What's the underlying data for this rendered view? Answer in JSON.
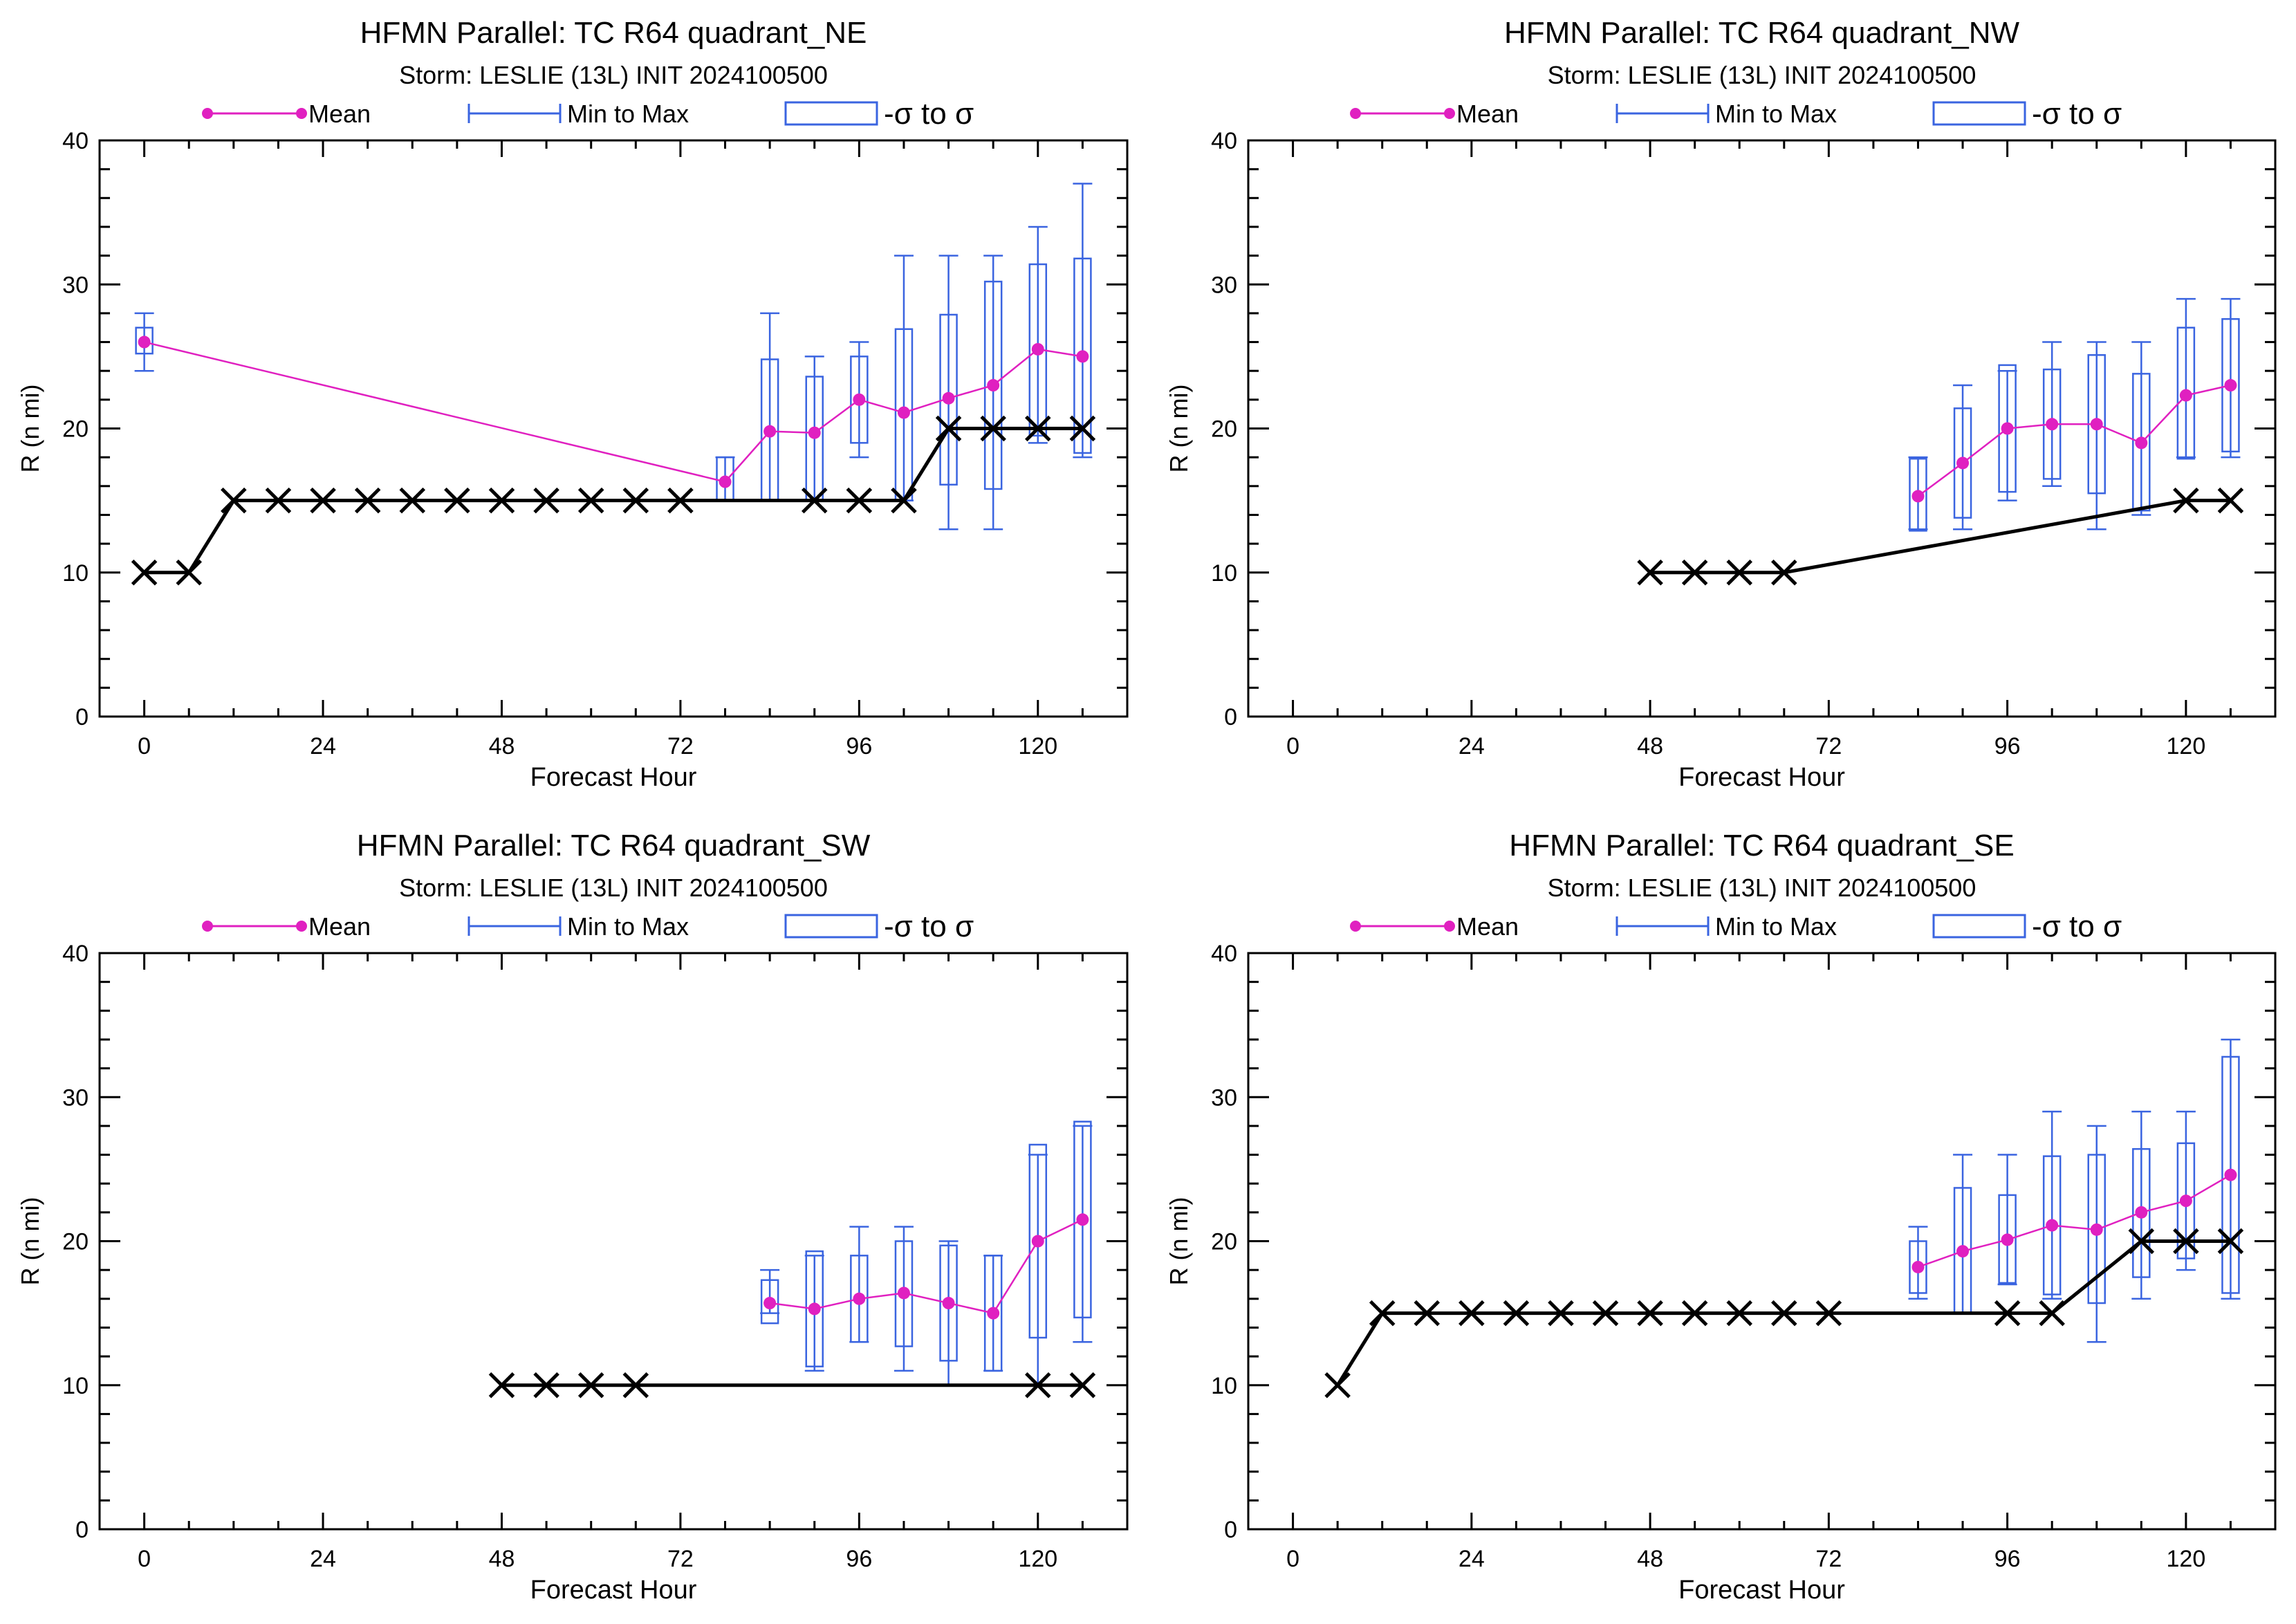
{
  "legend": {
    "mean": "Mean",
    "minmax": "Min to Max",
    "sigma": "-σ to σ"
  },
  "colors": {
    "mean": "#e020c0",
    "range": "#3a64e0",
    "best_track": "#000000"
  },
  "chart_data": [
    {
      "type": "line",
      "title": "HFMN Parallel: TC  R64 quadrant_NE",
      "subtitle": "Storm: LESLIE (13L) INIT 2024100500",
      "xlabel": "Forecast Hour",
      "ylabel": "R (n mi)",
      "xlim": [
        -6,
        132
      ],
      "ylim": [
        0,
        40
      ],
      "xticks": [
        0,
        24,
        48,
        72,
        96,
        120
      ],
      "yticks": [
        0,
        10,
        20,
        30,
        40
      ],
      "grid": false,
      "legend_position": "top",
      "best_track": {
        "x": [
          0,
          6,
          12,
          18,
          24,
          30,
          36,
          42,
          48,
          54,
          60,
          66,
          72,
          90,
          96,
          102,
          108,
          114,
          120,
          126
        ],
        "y": [
          10,
          10,
          15,
          15,
          15,
          15,
          15,
          15,
          15,
          15,
          15,
          15,
          15,
          15,
          15,
          15,
          20,
          20,
          20,
          20
        ]
      },
      "ensemble": {
        "x": [
          0,
          78,
          84,
          90,
          96,
          102,
          108,
          114,
          120,
          126
        ],
        "mean": [
          26,
          16.3,
          19.8,
          19.7,
          22,
          21.1,
          22.1,
          23,
          25.5,
          25
        ],
        "min": [
          24,
          15,
          15,
          15,
          18,
          15,
          13,
          13,
          19,
          18
        ],
        "max": [
          28,
          18,
          28,
          25,
          26,
          32,
          32,
          32,
          34,
          37
        ],
        "sd_low": [
          25.2,
          15,
          15,
          15,
          19,
          15,
          16.1,
          15.8,
          19.5,
          18.3
        ],
        "sd_high": [
          27,
          18,
          24.8,
          23.6,
          25,
          26.9,
          27.9,
          30.2,
          31.4,
          31.8
        ]
      }
    },
    {
      "type": "line",
      "title": "HFMN Parallel: TC  R64 quadrant_NW",
      "subtitle": "Storm: LESLIE (13L) INIT 2024100500",
      "xlabel": "Forecast Hour",
      "ylabel": "R (n mi)",
      "xlim": [
        -6,
        132
      ],
      "ylim": [
        0,
        40
      ],
      "xticks": [
        0,
        24,
        48,
        72,
        96,
        120
      ],
      "yticks": [
        0,
        10,
        20,
        30,
        40
      ],
      "grid": false,
      "legend_position": "top",
      "best_track": {
        "x": [
          48,
          54,
          60,
          66,
          120,
          126
        ],
        "y": [
          10,
          10,
          10,
          10,
          15,
          15
        ]
      },
      "ensemble": {
        "x": [
          84,
          90,
          96,
          102,
          108,
          114,
          120,
          126
        ],
        "mean": [
          15.3,
          17.6,
          20,
          20.3,
          20.3,
          19,
          22.3,
          23
        ],
        "min": [
          13,
          13,
          15,
          16,
          13,
          14,
          18,
          18
        ],
        "max": [
          18,
          23,
          24,
          26,
          26,
          26,
          29,
          29
        ],
        "sd_low": [
          12.9,
          13.8,
          15.6,
          16.5,
          15.5,
          14.3,
          17.9,
          18.4
        ],
        "sd_high": [
          17.9,
          21.4,
          24.4,
          24.1,
          25.1,
          23.8,
          27,
          27.6
        ]
      }
    },
    {
      "type": "line",
      "title": "HFMN Parallel: TC  R64 quadrant_SW",
      "subtitle": "Storm: LESLIE (13L) INIT 2024100500",
      "xlabel": "Forecast Hour",
      "ylabel": "R (n mi)",
      "xlim": [
        -6,
        132
      ],
      "ylim": [
        0,
        40
      ],
      "xticks": [
        0,
        24,
        48,
        72,
        96,
        120
      ],
      "yticks": [
        0,
        10,
        20,
        30,
        40
      ],
      "grid": false,
      "legend_position": "top",
      "best_track": {
        "x": [
          48,
          54,
          60,
          66,
          120,
          126
        ],
        "y": [
          10,
          10,
          10,
          10,
          10,
          10
        ]
      },
      "ensemble": {
        "x": [
          84,
          90,
          96,
          102,
          108,
          114,
          120,
          126
        ],
        "mean": [
          15.7,
          15.3,
          16,
          16.4,
          15.7,
          15,
          20,
          21.5
        ],
        "min": [
          15,
          11,
          13,
          11,
          10,
          11,
          10,
          13
        ],
        "max": [
          18,
          19,
          21,
          21,
          20,
          19,
          26,
          28
        ],
        "sd_low": [
          14.3,
          11.3,
          13,
          12.7,
          11.7,
          11,
          13.3,
          14.7
        ],
        "sd_high": [
          17.3,
          19.3,
          19,
          20,
          19.7,
          19,
          26.7,
          28.3
        ]
      }
    },
    {
      "type": "line",
      "title": "HFMN Parallel: TC  R64 quadrant_SE",
      "subtitle": "Storm: LESLIE (13L) INIT 2024100500",
      "xlabel": "Forecast Hour",
      "ylabel": "R (n mi)",
      "xlim": [
        -6,
        132
      ],
      "ylim": [
        0,
        40
      ],
      "xticks": [
        0,
        24,
        48,
        72,
        96,
        120
      ],
      "yticks": [
        0,
        10,
        20,
        30,
        40
      ],
      "grid": false,
      "legend_position": "top",
      "best_track": {
        "x": [
          6,
          12,
          18,
          24,
          30,
          36,
          42,
          48,
          54,
          60,
          66,
          72,
          96,
          102,
          114,
          120,
          126
        ],
        "y": [
          10,
          15,
          15,
          15,
          15,
          15,
          15,
          15,
          15,
          15,
          15,
          15,
          15,
          15,
          20,
          20,
          20
        ]
      },
      "ensemble": {
        "x": [
          84,
          90,
          96,
          102,
          108,
          114,
          120,
          126
        ],
        "mean": [
          18.2,
          19.3,
          20.1,
          21.1,
          20.8,
          22,
          22.8,
          24.6
        ],
        "min": [
          16,
          15,
          17,
          16,
          13,
          16,
          18,
          16
        ],
        "max": [
          21,
          26,
          26,
          29,
          28,
          29,
          29,
          34
        ],
        "sd_low": [
          16.4,
          15,
          17.1,
          16.3,
          15.7,
          17.5,
          18.8,
          16.4
        ],
        "sd_high": [
          20,
          23.7,
          23.2,
          25.9,
          26,
          26.4,
          26.8,
          32.8
        ]
      }
    }
  ]
}
